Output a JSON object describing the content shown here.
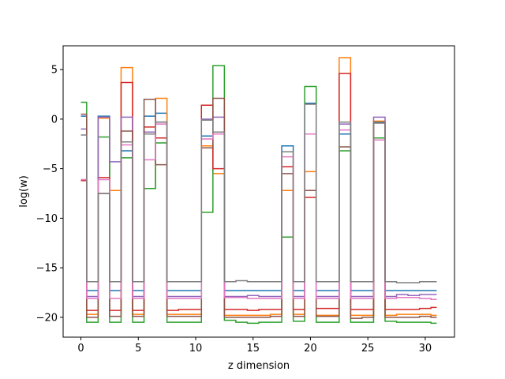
{
  "chart_data": {
    "type": "line",
    "step": "mid",
    "xlabel": "z dimension",
    "ylabel": "log(w)",
    "xlim": [
      -1.55,
      32.55
    ],
    "ylim": [
      -22.0,
      7.4
    ],
    "xticks": [
      0,
      5,
      10,
      15,
      20,
      25,
      30
    ],
    "yticks": [
      -20,
      -15,
      -10,
      -5,
      0,
      5
    ],
    "grid": false,
    "legend": "none",
    "x": [
      0,
      1,
      2,
      3,
      4,
      5,
      6,
      7,
      8,
      9,
      10,
      11,
      12,
      13,
      14,
      15,
      16,
      17,
      18,
      19,
      20,
      21,
      22,
      23,
      24,
      25,
      26,
      27,
      28,
      29,
      30,
      31
    ],
    "series": [
      {
        "color": "#1f77b4",
        "values": [
          0.3,
          -17.3,
          0.3,
          -17.3,
          -3.2,
          -17.3,
          0.3,
          0.6,
          -17.3,
          -17.3,
          -17.3,
          -1.7,
          -1.5,
          -17.3,
          -17.3,
          -17.3,
          -17.3,
          -17.3,
          -2.7,
          -17.3,
          1.6,
          -17.3,
          -17.3,
          -1.5,
          -17.3,
          -17.3,
          -0.3,
          -17.3,
          -17.3,
          -17.3,
          -17.3,
          -17.3
        ]
      },
      {
        "color": "#ff7f0e",
        "values": [
          -6.1,
          -19.7,
          0.1,
          -7.2,
          5.2,
          -19.7,
          -7.0,
          2.1,
          -19.7,
          -19.7,
          -19.7,
          -2.7,
          -5.5,
          -19.8,
          -19.8,
          -19.8,
          -19.8,
          -19.7,
          -7.2,
          -19.7,
          -5.3,
          -19.8,
          -19.8,
          6.2,
          -19.8,
          -19.8,
          -0.2,
          -19.8,
          -19.7,
          -19.7,
          -19.7,
          -19.8
        ]
      },
      {
        "color": "#2ca02c",
        "values": [
          1.7,
          -20.5,
          -1.8,
          -20.5,
          -3.9,
          -20.5,
          -7.0,
          -2.4,
          -20.5,
          -20.5,
          -20.5,
          -9.4,
          5.4,
          -20.3,
          -20.5,
          -20.6,
          -20.5,
          -20.5,
          -11.9,
          -20.4,
          3.3,
          -20.5,
          -20.5,
          -3.2,
          -20.5,
          -20.5,
          -1.9,
          -20.4,
          -20.5,
          -20.5,
          -20.5,
          -20.6
        ]
      },
      {
        "color": "#d62728",
        "values": [
          -6.2,
          -19.3,
          -5.9,
          -19.3,
          3.7,
          -19.3,
          -0.8,
          -1.9,
          -19.3,
          -19.2,
          -19.2,
          1.4,
          -5.0,
          -19.2,
          -19.2,
          -19.3,
          -19.2,
          -19.2,
          -4.8,
          -19.2,
          -7.9,
          -19.1,
          -19.1,
          4.6,
          -19.2,
          -19.2,
          -2.1,
          -19.2,
          -19.2,
          -19.2,
          -19.1,
          -19.0
        ]
      },
      {
        "color": "#9467bd",
        "values": [
          -1.0,
          -17.9,
          0.2,
          -4.3,
          0.2,
          -17.9,
          -1.3,
          -0.3,
          -17.9,
          -17.9,
          -17.9,
          0.0,
          0.2,
          -17.9,
          -17.9,
          -17.8,
          -17.9,
          -17.9,
          -3.3,
          -17.9,
          -1.5,
          -17.9,
          -17.9,
          -0.5,
          -17.9,
          -17.9,
          0.2,
          -17.9,
          -17.7,
          -17.8,
          -17.7,
          -17.7
        ]
      },
      {
        "color": "#8c564b",
        "values": [
          0.5,
          -20.0,
          -7.5,
          -19.9,
          -1.2,
          -19.9,
          2.0,
          -4.6,
          -19.9,
          -19.9,
          -19.9,
          -2.9,
          2.1,
          -20.0,
          -20.0,
          -20.0,
          -20.0,
          -19.9,
          -5.5,
          -19.9,
          -7.2,
          -19.9,
          -19.9,
          -2.8,
          -20.1,
          -20.0,
          -0.4,
          -20.0,
          -20.0,
          -20.0,
          -19.9,
          -20.0
        ]
      },
      {
        "color": "#e377c2",
        "values": [
          -6.1,
          -18.1,
          -6.1,
          -18.1,
          -2.6,
          -18.1,
          -4.1,
          -0.5,
          -18.1,
          -18.1,
          -18.1,
          -2.0,
          -1.5,
          -18.0,
          -18.0,
          -18.1,
          -18.1,
          -18.1,
          -3.8,
          -18.1,
          -1.5,
          -18.1,
          -18.1,
          -1.1,
          -18.1,
          -18.1,
          -2.1,
          -18.1,
          -18.0,
          -18.0,
          -18.1,
          -18.2
        ]
      },
      {
        "color": "#7f7f7f",
        "values": [
          -1.6,
          -16.4,
          -7.5,
          -16.4,
          -2.3,
          -16.4,
          -1.5,
          -0.3,
          -16.4,
          -16.4,
          -16.4,
          -0.1,
          -1.3,
          -16.4,
          -16.3,
          -16.4,
          -16.4,
          -16.4,
          -3.3,
          -16.4,
          1.5,
          -16.4,
          -16.4,
          -0.3,
          -16.4,
          -16.4,
          -0.4,
          -16.4,
          -16.5,
          -16.5,
          -16.4,
          -16.4
        ]
      }
    ]
  }
}
